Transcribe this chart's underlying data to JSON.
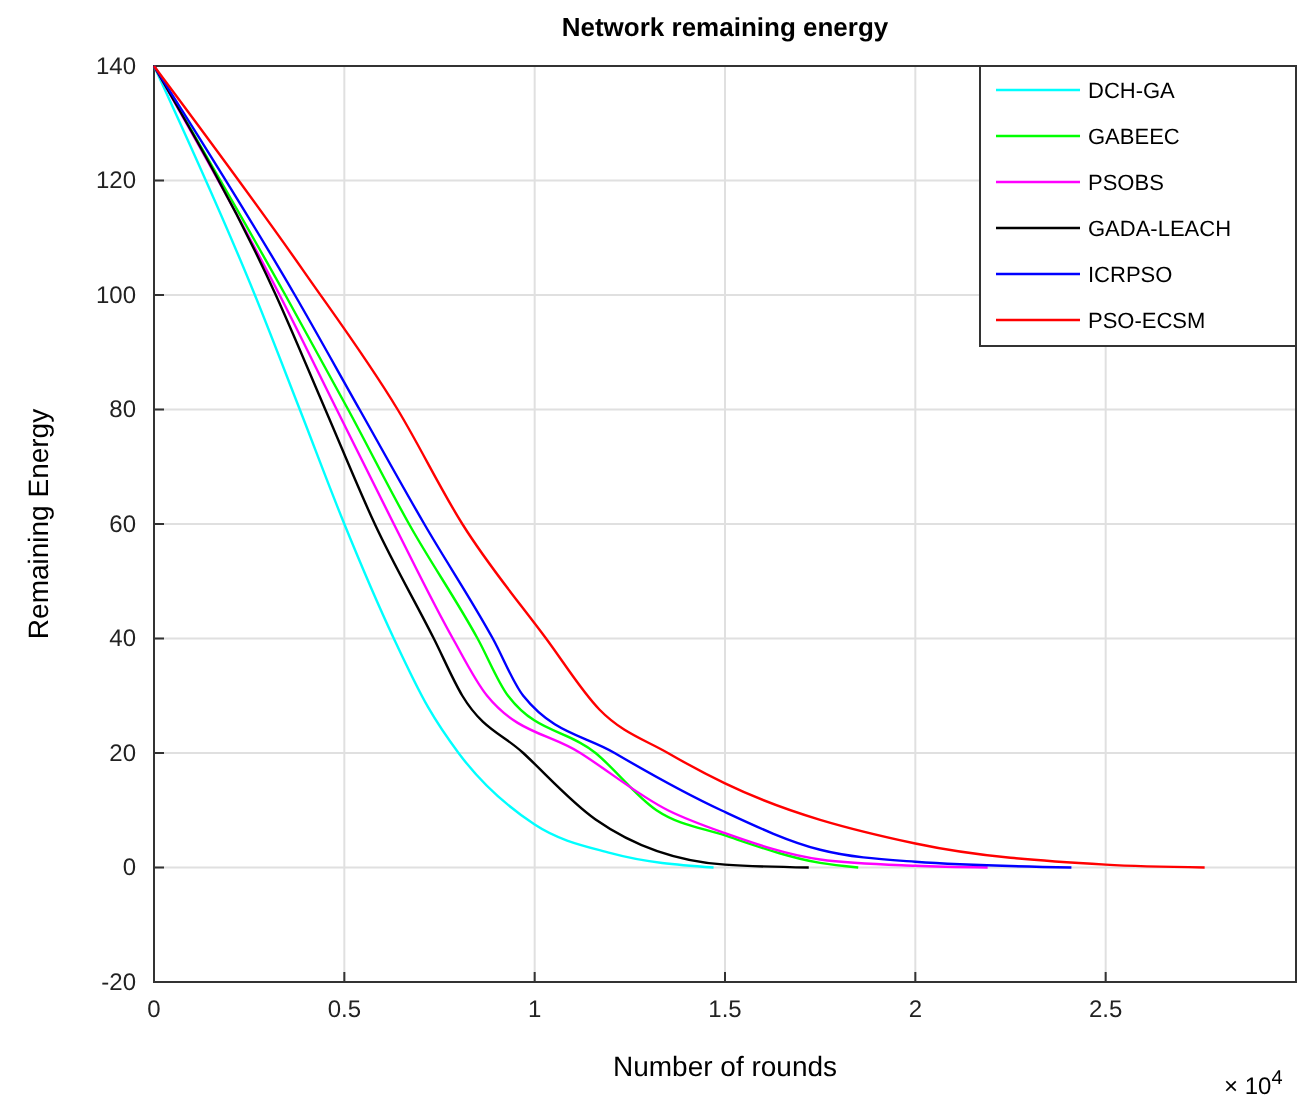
{
  "chart_data": {
    "type": "line",
    "title": "Network remaining energy",
    "xlabel": "Number of rounds",
    "ylabel": "Remaining Energy",
    "annotations": [
      "× 10$^{4}$"
    ],
    "xlim": [
      0,
      3
    ],
    "xticks": [
      0,
      0.5,
      1,
      1.5,
      2,
      2.5
    ],
    "ylim": [
      -20,
      140
    ],
    "yticks": [
      -20,
      0,
      20,
      40,
      60,
      80,
      100,
      120,
      140
    ],
    "grid": true,
    "legend": "top right",
    "line_style": "solid",
    "series": [
      {
        "name": "DCH-GA",
        "color": "#00ffff",
        "x": [
          0,
          0.265,
          0.383,
          0.5,
          0.63,
          0.72,
          0.8,
          1.0,
          1.2,
          1.47
        ],
        "values": [
          140,
          100,
          80,
          60,
          40,
          28,
          20,
          7.5,
          2.5,
          0
        ]
      },
      {
        "name": "GABEEC",
        "color": "#00ff00",
        "x": [
          0,
          0.345,
          0.51,
          0.67,
          0.85,
          0.93,
          1.16,
          1.32,
          1.5,
          1.75,
          1.85
        ],
        "values": [
          140,
          100,
          80,
          60,
          40,
          30,
          20,
          10,
          5.6,
          0.8,
          0
        ]
      },
      {
        "name": "PSOBS",
        "color": "#ff00ff",
        "x": [
          0,
          0.33,
          0.48,
          0.63,
          0.785,
          0.875,
          1.12,
          1.35,
          1.5,
          1.75,
          2.0,
          2.19
        ],
        "values": [
          140,
          100,
          80,
          60,
          40,
          30,
          20,
          10,
          6,
          1.4,
          0.3,
          0
        ]
      },
      {
        "name": "GADA-LEACH",
        "color": "#000000",
        "x": [
          0,
          0.32,
          0.45,
          0.58,
          0.735,
          0.81,
          0.97,
          1.16,
          1.5,
          1.72
        ],
        "values": [
          140,
          100,
          80,
          60,
          40,
          30,
          20,
          8.4,
          0.5,
          0
        ]
      },
      {
        "name": "ICRPSO",
        "color": "#0000ff",
        "x": [
          0,
          0.37,
          0.54,
          0.71,
          0.89,
          0.97,
          1.21,
          1.49,
          1.75,
          2.0,
          2.41
        ],
        "values": [
          140,
          100,
          80,
          60,
          40,
          30,
          20,
          10,
          3.1,
          1,
          0
        ]
      },
      {
        "name": "PSO-ECSM",
        "color": "#ff0000",
        "x": [
          0,
          0.395,
          0.64,
          0.81,
          1.03,
          1.17,
          1.35,
          1.5,
          2.0,
          2.5,
          2.76
        ],
        "values": [
          140,
          104,
          80,
          60,
          40,
          27.6,
          20,
          14.7,
          4.2,
          0.5,
          0
        ]
      }
    ]
  }
}
